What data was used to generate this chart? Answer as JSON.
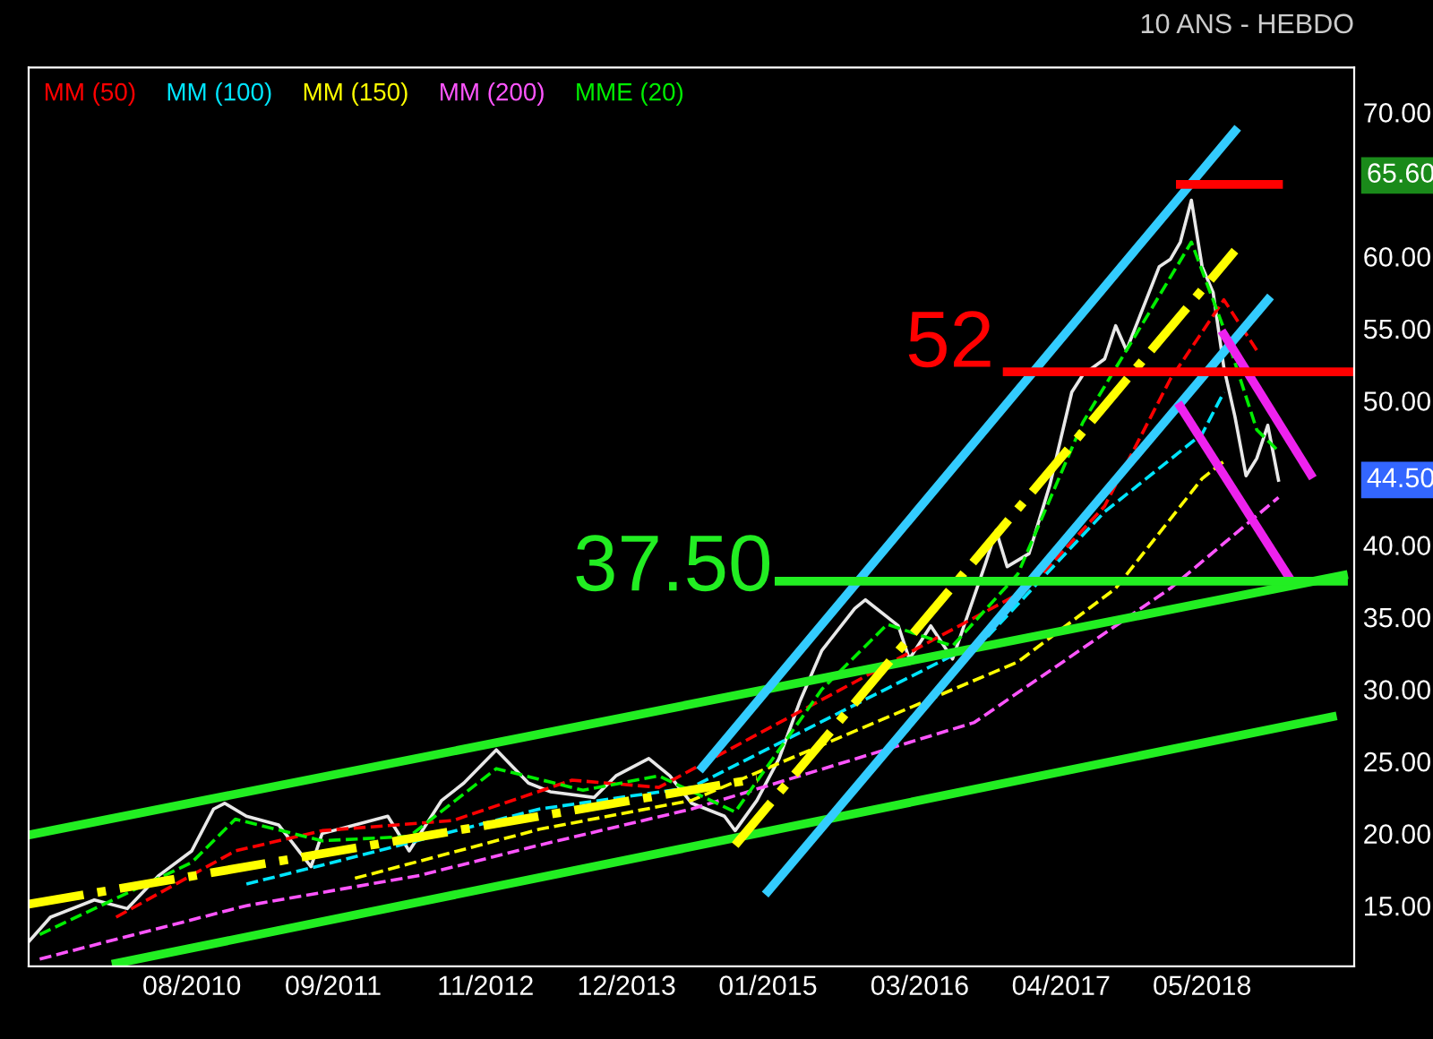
{
  "chart_data": {
    "type": "line",
    "title": "10 ANS - HEBDO",
    "xlim": [
      "2009-05",
      "2019-07"
    ],
    "ylim": [
      10.8,
      73.1
    ],
    "xticks": [
      {
        "value": "2010-08",
        "label": "08/2010"
      },
      {
        "value": "2011-09",
        "label": "09/2011"
      },
      {
        "value": "2012-11",
        "label": "11/2012"
      },
      {
        "value": "2013-12",
        "label": "12/2013"
      },
      {
        "value": "2015-01",
        "label": "01/2015"
      },
      {
        "value": "2016-03",
        "label": "03/2016"
      },
      {
        "value": "2017-04",
        "label": "04/2017"
      },
      {
        "value": "2018-05",
        "label": "05/2018"
      }
    ],
    "yticks": [
      {
        "value": 15,
        "label": "15.00"
      },
      {
        "value": 20,
        "label": "20.00"
      },
      {
        "value": 25,
        "label": "25.00"
      },
      {
        "value": 30,
        "label": "30.00"
      },
      {
        "value": 35,
        "label": "35.00"
      },
      {
        "value": 40,
        "label": "40.00"
      },
      {
        "value": 50,
        "label": "50.00"
      },
      {
        "value": 55,
        "label": "55.00"
      },
      {
        "value": 60,
        "label": "60.00"
      },
      {
        "value": 70,
        "label": "70.00"
      }
    ],
    "grid": false,
    "legend": "top left",
    "marker": "none",
    "series": [
      {
        "color": "#e8e8e8",
        "line_style": "solid",
        "x": [
          "2009-05",
          "2009-07",
          "2009-11",
          "2010-02",
          "2010-05",
          "2010-08",
          "2010-10",
          "2010-11",
          "2011-01",
          "2011-04",
          "2011-07",
          "2011-08",
          "2011-11",
          "2012-02",
          "2012-04",
          "2012-07",
          "2012-09",
          "2012-12",
          "2013-01",
          "2013-03",
          "2013-05",
          "2013-09",
          "2013-11",
          "2014-02",
          "2014-04",
          "2014-06",
          "2014-09",
          "2014-10",
          "2014-12",
          "2015-02",
          "2015-04",
          "2015-06",
          "2015-09",
          "2015-10",
          "2016-01",
          "2016-02",
          "2016-04",
          "2016-06",
          "2016-09",
          "2016-10",
          "2016-11",
          "2017-01",
          "2017-03",
          "2017-05",
          "2017-06",
          "2017-08",
          "2017-09",
          "2017-10",
          "2018-01",
          "2018-02",
          "2018-03",
          "2018-04",
          "2018-05",
          "2018-06",
          "2018-07",
          "2018-08",
          "2018-09",
          "2018-10",
          "2018-11",
          "2018-12"
        ],
        "values": [
          12.5,
          14.2,
          15.4,
          14.8,
          17.1,
          18.8,
          21.7,
          22.1,
          21.2,
          20.6,
          17.7,
          20.0,
          20.6,
          21.2,
          18.8,
          22.3,
          23.5,
          25.8,
          25.0,
          23.5,
          22.9,
          22.5,
          24.0,
          25.2,
          24.0,
          22.1,
          21.2,
          20.2,
          22.3,
          25.2,
          29.2,
          32.7,
          35.6,
          36.2,
          34.4,
          32.1,
          34.4,
          32.1,
          38.7,
          41.0,
          38.5,
          39.4,
          44.2,
          50.6,
          51.8,
          52.9,
          55.2,
          53.5,
          59.3,
          59.8,
          61.0,
          63.9,
          59.3,
          57.5,
          52.3,
          48.9,
          44.8,
          46.0,
          48.3,
          44.5
        ]
      },
      {
        "name": "MM (50)",
        "color": "#ff0000",
        "line_style": "dashed",
        "x": [
          "2010-01",
          "2010-12",
          "2011-08",
          "2012-08",
          "2013-07",
          "2014-03",
          "2017-01",
          "2017-08",
          "2018-02",
          "2018-07",
          "2018-10"
        ],
        "values": [
          14.2,
          18.8,
          20.2,
          20.9,
          23.7,
          23.2,
          37.0,
          42.7,
          51.5,
          57.0,
          53.5
        ]
      },
      {
        "name": "MM (100)",
        "color": "#00e5ff",
        "line_style": "dashed",
        "x": [
          "2011-01",
          "2011-09",
          "2013-04",
          "2014-06",
          "2016-09",
          "2017-08",
          "2018-05",
          "2018-07"
        ],
        "values": [
          16.5,
          18.0,
          21.7,
          23.2,
          33.5,
          42.3,
          47.7,
          50.6
        ]
      },
      {
        "name": "MM (150)",
        "color": "#ffff00",
        "line_style": "dashed",
        "x": [
          "2011-11",
          "2013-04",
          "2014-06",
          "2016-12",
          "2017-09",
          "2018-05",
          "2018-07"
        ],
        "values": [
          16.9,
          20.3,
          22.3,
          31.9,
          37.0,
          44.6,
          45.8
        ]
      },
      {
        "name": "MM (200)",
        "color": "#ff55ff",
        "line_style": "dashed",
        "x": [
          "2009-06",
          "2011-01",
          "2012-05",
          "2013-04",
          "2014-06",
          "2016-08",
          "2018-02",
          "2018-12"
        ],
        "values": [
          11.3,
          15.0,
          17.1,
          19.2,
          21.7,
          27.7,
          37.0,
          43.3
        ]
      },
      {
        "name": "MME (20)",
        "color": "#00ee00",
        "line_style": "dashed",
        "x": [
          "2009-06",
          "2010-08",
          "2010-12",
          "2011-08",
          "2012-04",
          "2012-12",
          "2013-08",
          "2014-03",
          "2014-10",
          "2015-06",
          "2015-12",
          "2016-06",
          "2016-12",
          "2017-06",
          "2017-12",
          "2018-04",
          "2018-07",
          "2018-10",
          "2018-12"
        ],
        "values": [
          13.0,
          18.0,
          21.0,
          19.5,
          19.8,
          24.5,
          23.0,
          24.0,
          21.5,
          30.0,
          34.5,
          33.0,
          38.0,
          48.5,
          56.0,
          61.0,
          55.0,
          48.0,
          46.5
        ]
      },
      {
        "color": "#22ee22",
        "line_style": "solid",
        "x": [
          "2009-05",
          "2019-06"
        ],
        "values": [
          19.9,
          37.9
        ]
      },
      {
        "color": "#22ee22",
        "line_style": "solid",
        "x": [
          "2010-01",
          "2019-05"
        ],
        "values": [
          11.0,
          28.1
        ]
      },
      {
        "color": "#ffff00",
        "line_style": "dotted",
        "x": [
          "2009-05",
          "2014-12"
        ],
        "values": [
          15.1,
          23.8
        ]
      },
      {
        "color": "#ffff00",
        "line_style": "dotted",
        "x": [
          "2014-10",
          "2018-08"
        ],
        "values": [
          19.2,
          60.4
        ]
      },
      {
        "color": "#33ccff",
        "line_style": "solid",
        "x": [
          "2014-07",
          "2018-08"
        ],
        "values": [
          24.6,
          68.7
        ]
      },
      {
        "color": "#33ccff",
        "line_style": "solid",
        "x": [
          "2015-01",
          "2018-11"
        ],
        "values": [
          16.0,
          57.0
        ]
      },
      {
        "color": "#ee22ee",
        "line_style": "solid",
        "x": [
          "2018-03",
          "2019-01"
        ],
        "values": [
          49.6,
          37.7
        ]
      },
      {
        "color": "#ee22ee",
        "line_style": "solid",
        "x": [
          "2018-07",
          "2019-03"
        ],
        "values": [
          54.6,
          44.9
        ]
      },
      {
        "color": "#ff0000",
        "line_style": "solid",
        "x": [
          "2018-03",
          "2018-12"
        ],
        "values": [
          65.0,
          65.0
        ]
      },
      {
        "color": "#ff0000",
        "line_style": "solid",
        "x": [
          "2016-11",
          "2019-07"
        ],
        "values": [
          52,
          52
        ]
      },
      {
        "color": "#22ee22",
        "line_style": "solid",
        "x": [
          "2015-02",
          "2019-06"
        ],
        "values": [
          37.5,
          37.5
        ]
      }
    ],
    "annotations": [
      "52",
      "37.50",
      "65.60",
      "44.50"
    ]
  }
}
